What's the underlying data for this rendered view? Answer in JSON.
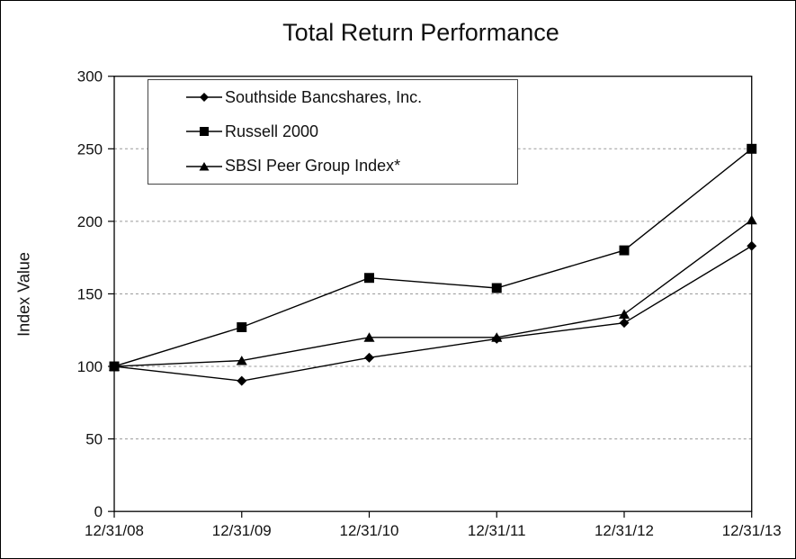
{
  "chart_data": {
    "type": "line",
    "title": "Total Return Performance",
    "ylabel": "Index Value",
    "xlabel": "",
    "categories": [
      "12/31/08",
      "12/31/09",
      "12/31/10",
      "12/31/11",
      "12/31/12",
      "12/31/13"
    ],
    "series": [
      {
        "name": "Southside Bancshares, Inc.",
        "marker": "diamond",
        "values": [
          100,
          90,
          106,
          119,
          130,
          183
        ]
      },
      {
        "name": "Russell 2000",
        "marker": "square",
        "values": [
          100,
          127,
          161,
          154,
          180,
          250
        ]
      },
      {
        "name": "SBSI Peer Group Index*",
        "marker": "triangle",
        "values": [
          100,
          104,
          120,
          120,
          136,
          201
        ]
      }
    ],
    "ylim": [
      0,
      300
    ],
    "yticks": [
      0,
      50,
      100,
      150,
      200,
      250,
      300
    ],
    "grid": "horizontal-dashed",
    "legend_position": "top-left-inside",
    "colors": {
      "line": "#000000",
      "grid": "#999999",
      "background": "#ffffff",
      "text": "#111111"
    }
  }
}
